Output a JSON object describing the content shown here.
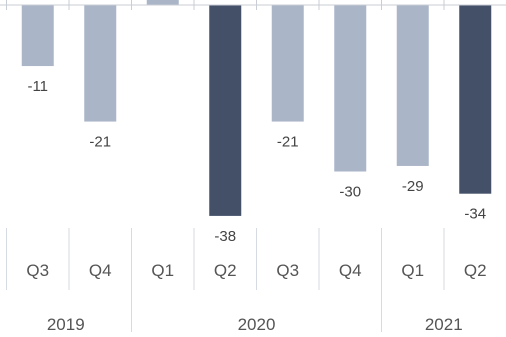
{
  "chart_data": {
    "type": "bar",
    "title": "",
    "xlabel": "",
    "ylabel": "",
    "categories": [
      {
        "quarter": "Q2",
        "year": "2019"
      },
      {
        "quarter": "Q3",
        "year": "2019"
      },
      {
        "quarter": "Q4",
        "year": "2019"
      },
      {
        "quarter": "Q1",
        "year": "2020"
      },
      {
        "quarter": "Q2",
        "year": "2020"
      },
      {
        "quarter": "Q3",
        "year": "2020"
      },
      {
        "quarter": "Q4",
        "year": "2020"
      },
      {
        "quarter": "Q1",
        "year": "2021"
      },
      {
        "quarter": "Q2",
        "year": "2021"
      }
    ],
    "values": [
      0,
      -11,
      -21,
      1,
      -38,
      -21,
      -30,
      -29,
      -34
    ],
    "value_labels": [
      "",
      "-11",
      "-21",
      "",
      "-38",
      "-21",
      "-30",
      "-29",
      "-34"
    ],
    "highlight": [
      false,
      false,
      false,
      false,
      true,
      false,
      false,
      false,
      true
    ],
    "years": [
      "2019",
      "2020",
      "2021"
    ],
    "ylim": [
      -40,
      1
    ],
    "grid": false,
    "legend": "none",
    "colors": {
      "bar": "#aab5c8",
      "highlight": "#435068",
      "axis": "#c8cdd6",
      "divider": "#d6dae2",
      "text": "#555555"
    }
  }
}
